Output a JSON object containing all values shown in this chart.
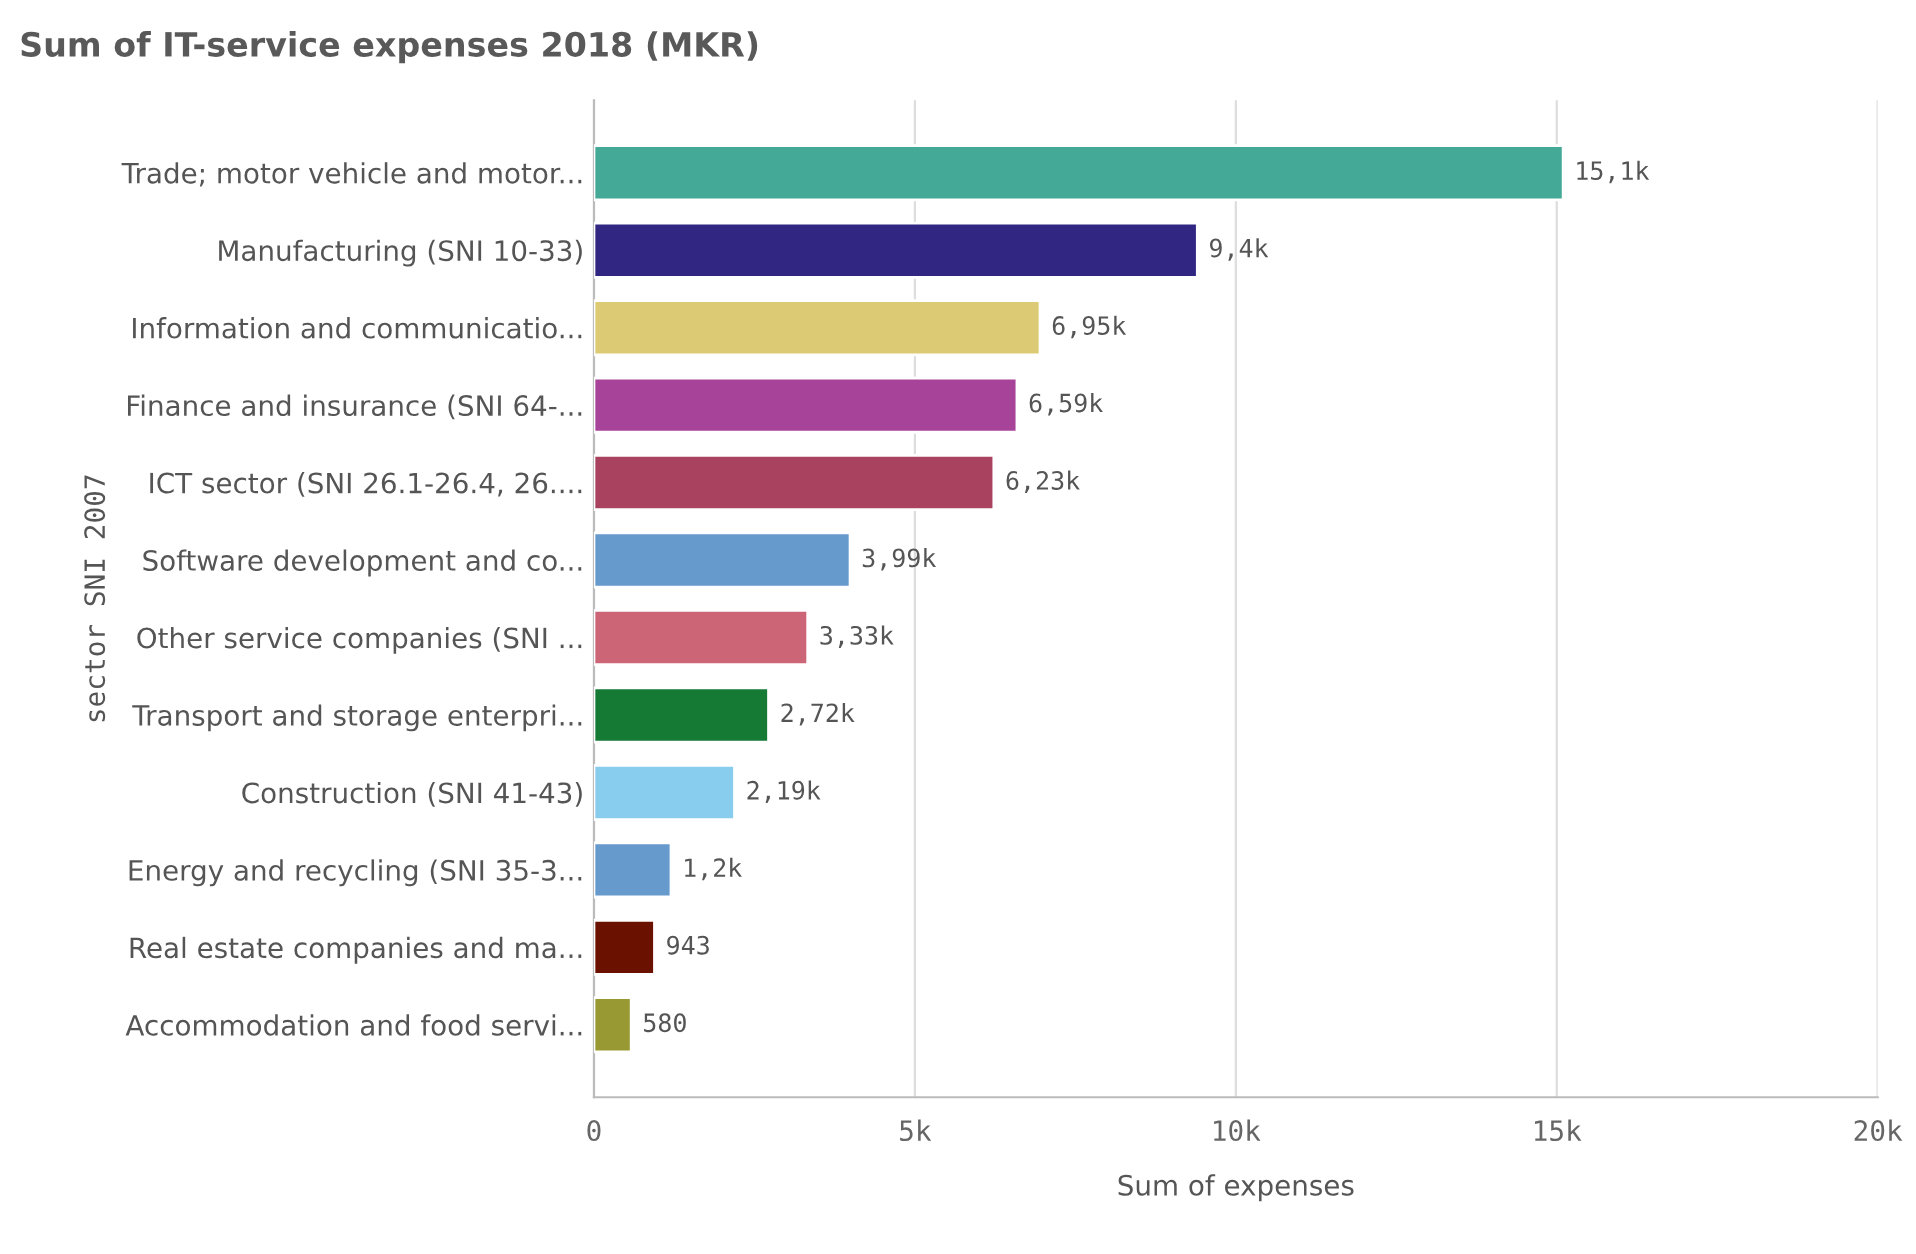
{
  "chart_data": {
    "type": "bar",
    "orientation": "horizontal",
    "title": "Sum of IT-service expenses 2018 (MKR)",
    "xlabel": "Sum of expenses",
    "ylabel": "sector SNI 2007",
    "categories": [
      "Trade; motor vehicle and motor...",
      "Manufacturing (SNI 10-33)",
      "Information and communicatio...",
      "Finance and insurance (SNI 64-...",
      "ICT sector (SNI 26.1-26.4, 26....",
      "Software development and co...",
      "Other service companies (SNI ...",
      "Transport and storage enterpri...",
      "Construction (SNI 41-43)",
      "Energy and recycling (SNI 35-3...",
      "Real estate companies and ma...",
      "Accommodation and food servi..."
    ],
    "values": [
      15100,
      9400,
      6950,
      6590,
      6230,
      3990,
      3330,
      2720,
      2190,
      1200,
      943,
      580
    ],
    "value_labels": [
      "15,1k",
      "9,4k",
      "6,95k",
      "6,59k",
      "6,23k",
      "3,99k",
      "3,33k",
      "2,72k",
      "2,19k",
      "1,2k",
      "943",
      "580"
    ],
    "colors": [
      "#44a997",
      "#312783",
      "#dccb74",
      "#a8439a",
      "#a8425f",
      "#6699cc",
      "#cc6677",
      "#157a34",
      "#88ccee",
      "#6699cc",
      "#6b1100",
      "#999933"
    ],
    "xlim": [
      0,
      20000
    ],
    "xticks": [
      {
        "value": 0,
        "label": "0"
      },
      {
        "value": 5000,
        "label": "5k"
      },
      {
        "value": 10000,
        "label": "10k"
      },
      {
        "value": 15000,
        "label": "15k"
      },
      {
        "value": 20000,
        "label": "20k"
      }
    ],
    "grid": "x",
    "legend": false
  }
}
